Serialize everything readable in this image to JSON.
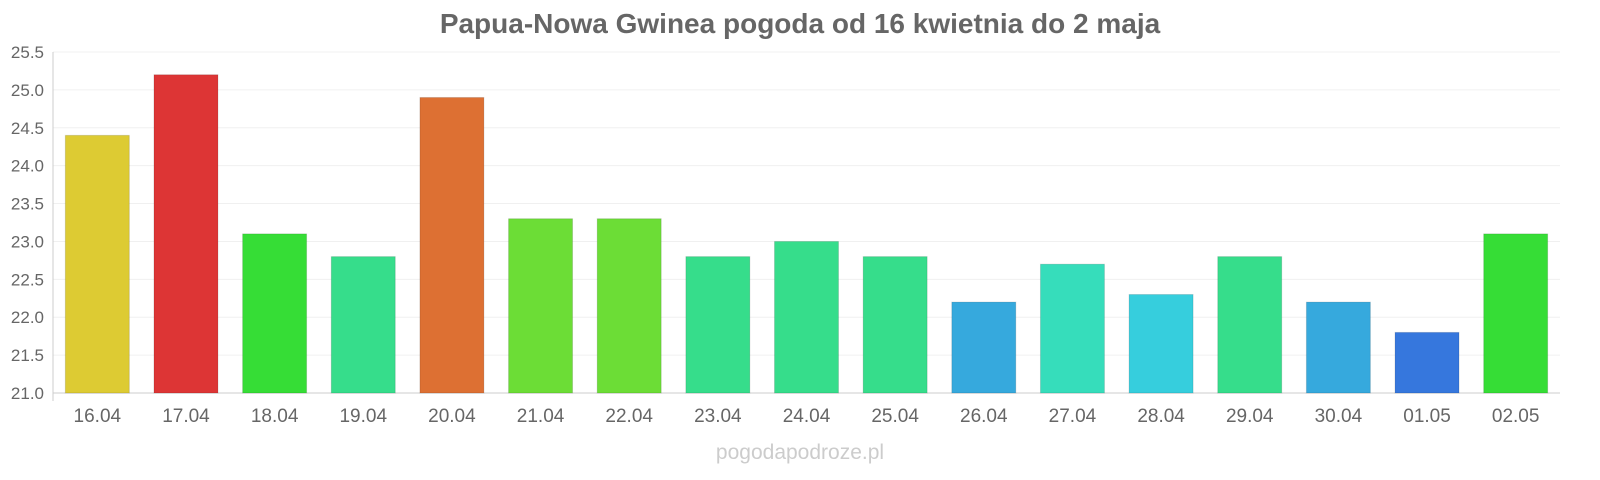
{
  "chart_data": {
    "type": "bar",
    "title": "Papua-Nowa Gwinea pogoda od 16 kwietnia do 2 maja",
    "xlabel": "",
    "ylabel": "",
    "ylim": [
      21.0,
      25.5
    ],
    "yticks": [
      "21.0",
      "21.5",
      "22.0",
      "22.5",
      "23.0",
      "23.5",
      "24.0",
      "24.5",
      "25.0",
      "25.5"
    ],
    "grid": true,
    "categories": [
      "16.04",
      "17.04",
      "18.04",
      "19.04",
      "20.04",
      "21.04",
      "22.04",
      "23.04",
      "24.04",
      "25.04",
      "26.04",
      "27.04",
      "28.04",
      "29.04",
      "30.04",
      "01.05",
      "02.05"
    ],
    "values": [
      24.4,
      25.2,
      23.1,
      22.8,
      24.9,
      23.3,
      23.3,
      22.8,
      23.0,
      22.8,
      22.2,
      22.7,
      22.3,
      22.8,
      22.2,
      21.8,
      23.1
    ],
    "colors": [
      "#ddcb33",
      "#dd3535",
      "#36dd36",
      "#36dd8b",
      "#dd7033",
      "#6cdd36",
      "#6cdd36",
      "#36dd8b",
      "#36dd8b",
      "#36dd8b",
      "#36a9dd",
      "#36ddbb",
      "#36cedd",
      "#36dd8b",
      "#36a9dd",
      "#3677dd",
      "#36dd36"
    ]
  },
  "watermark": "pogodapodroze.pl"
}
